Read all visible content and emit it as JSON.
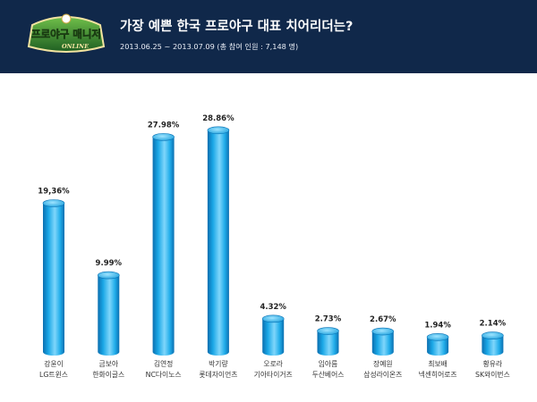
{
  "header": {
    "logo_text": "프로야구 매니저",
    "logo_sub": "ONLINE",
    "title": "가장 예쁜 한국 프로야구 대표 치어리더는?",
    "subtitle": "2013.06.25 ~ 2013.07.09 (총 참여 인원 : 7,148 명)"
  },
  "colors": {
    "header_bg": "#10284a",
    "bar_main": "#1aa7e6",
    "bar_dark": "#0b72b5",
    "bar_light": "#7fd6fb",
    "bar_top": "#3cc0f5",
    "logo_green": "#2e7d32"
  },
  "chart_data": {
    "type": "bar",
    "title": "가장 예쁜 한국 프로야구 대표 치어리더는?",
    "categories": [
      [
        "강윤이",
        "LG트윈스"
      ],
      [
        "금보아",
        "한화이글스"
      ],
      [
        "김연정",
        "NC다이노스"
      ],
      [
        "박기량",
        "롯데자이언츠"
      ],
      [
        "오로라",
        "기아타이거즈"
      ],
      [
        "임아름",
        "두산베어스"
      ],
      [
        "장예원",
        "삼성라이온즈"
      ],
      [
        "최보배",
        "넥센히어로즈"
      ],
      [
        "황유라",
        "SK와이번스"
      ]
    ],
    "values": [
      19.36,
      9.99,
      27.98,
      28.86,
      4.32,
      2.73,
      2.67,
      1.94,
      2.14
    ],
    "value_labels": [
      "19,36%",
      "9.99%",
      "27.98%",
      "28.86%",
      "4.32%",
      "2.73%",
      "2.67%",
      "1.94%",
      "2.14%"
    ],
    "xlabel": "",
    "ylabel": "",
    "ylim": [
      0,
      30
    ],
    "grid": false,
    "legend": "none"
  }
}
